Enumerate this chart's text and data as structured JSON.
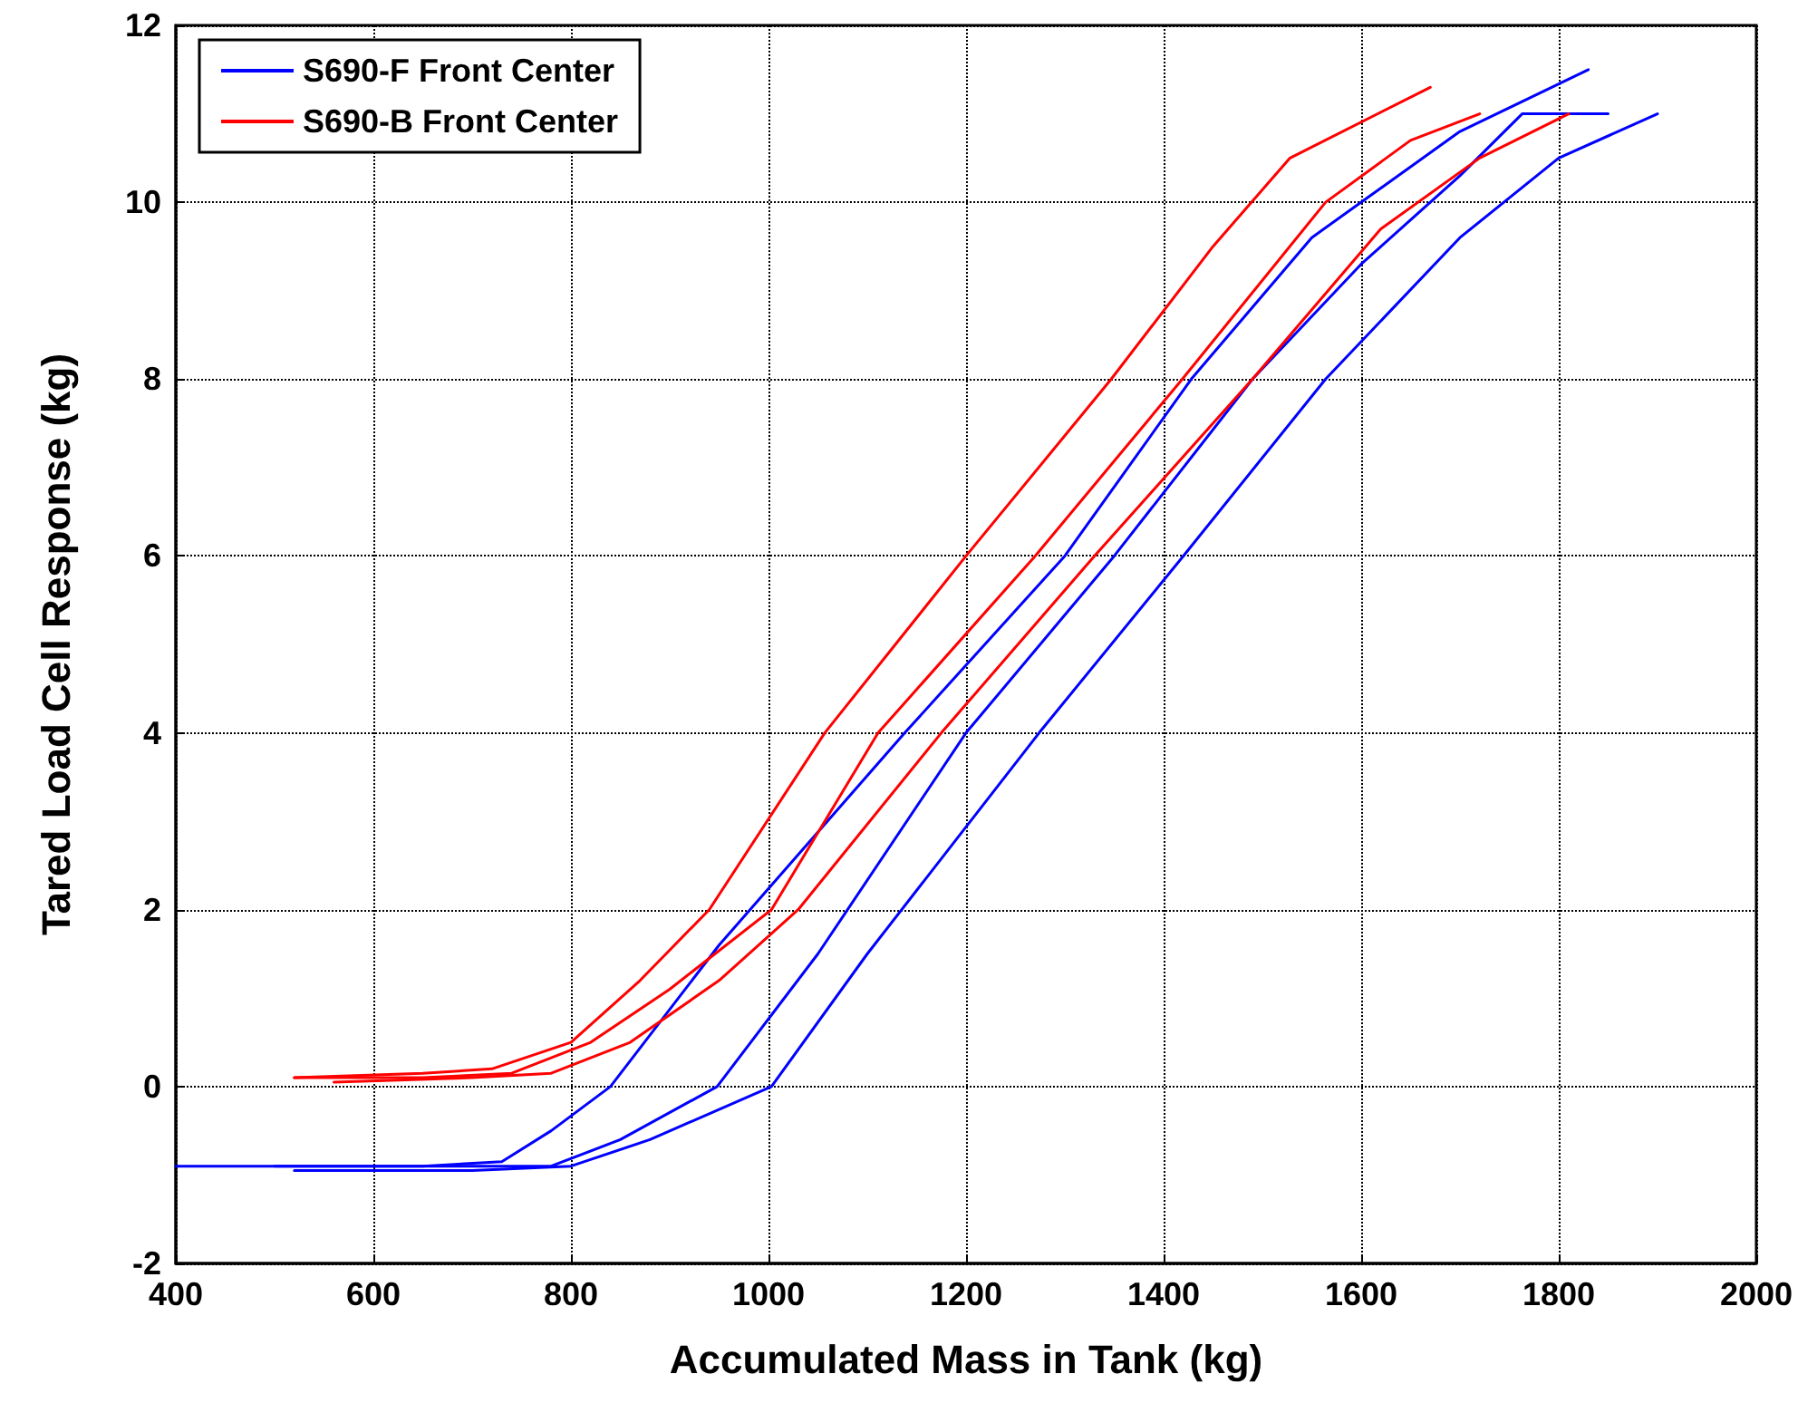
{
  "chart_data": {
    "type": "line",
    "xlabel": "Accumulated Mass in Tank (kg)",
    "ylabel": "Tared Load Cell Response (kg)",
    "xlim": [
      400,
      2000
    ],
    "xticks": [
      400,
      600,
      800,
      1000,
      1200,
      1400,
      1600,
      1800,
      2000
    ],
    "ylim": [
      -2,
      12
    ],
    "yticks": [
      -2,
      0,
      2,
      4,
      6,
      8,
      10,
      12
    ],
    "grid": true,
    "legend": "top left",
    "marker": "none",
    "line_style": "solid",
    "series": [
      {
        "name": "S690-F Front Center",
        "color": "#0000ff",
        "x": [
          400,
          600,
          780,
          850,
          948,
          1050,
          1200,
          1350,
          1490,
          1600,
          1700,
          1763,
          1850
        ],
        "values": [
          -0.9,
          -0.9,
          -0.9,
          -0.6,
          0,
          1.5,
          4,
          6,
          8,
          9.3,
          10.3,
          11,
          11
        ]
      },
      {
        "color": "#0000ff",
        "x": [
          500,
          650,
          730,
          780,
          840,
          950,
          1138,
          1300,
          1428,
          1550,
          1700,
          1830
        ],
        "values": [
          -0.9,
          -0.9,
          -0.85,
          -0.5,
          0,
          1.6,
          4,
          6,
          8,
          9.6,
          10.8,
          11.5
        ]
      },
      {
        "color": "#0000ff",
        "x": [
          520,
          700,
          800,
          880,
          1003,
          1100,
          1274,
          1420,
          1564,
          1700,
          1800,
          1900
        ],
        "values": [
          -0.95,
          -0.95,
          -0.9,
          -0.6,
          0,
          1.5,
          4,
          6,
          8,
          9.6,
          10.5,
          11
        ]
      },
      {
        "name": "S690-B Front Center",
        "color": "#ff0000",
        "x": [
          520,
          650,
          740,
          820,
          900,
          1003,
          1111,
          1270,
          1419,
          1564,
          1650,
          1720
        ],
        "values": [
          0.1,
          0.1,
          0.15,
          0.5,
          1.1,
          2,
          4,
          6,
          8,
          10,
          10.7,
          11
        ]
      },
      {
        "color": "#ff0000",
        "x": [
          520,
          650,
          720,
          800,
          870,
          940,
          1057,
          1200,
          1347,
          1450,
          1528,
          1670
        ],
        "values": [
          0.1,
          0.15,
          0.2,
          0.5,
          1.2,
          2,
          4,
          6,
          8,
          9.5,
          10.5,
          11.3
        ]
      },
      {
        "color": "#ff0000",
        "x": [
          560,
          700,
          780,
          860,
          950,
          1030,
          1175,
          1330,
          1490,
          1620,
          1720,
          1810
        ],
        "values": [
          0.05,
          0.1,
          0.15,
          0.5,
          1.2,
          2,
          4,
          6,
          8,
          9.7,
          10.5,
          11
        ]
      }
    ]
  }
}
